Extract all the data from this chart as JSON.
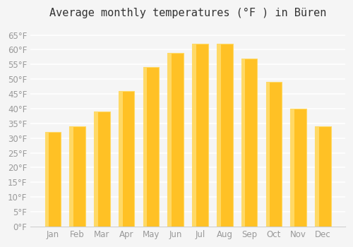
{
  "title": "Average monthly temperatures (°F ) in Büren",
  "months": [
    "Jan",
    "Feb",
    "Mar",
    "Apr",
    "May",
    "Jun",
    "Jul",
    "Aug",
    "Sep",
    "Oct",
    "Nov",
    "Dec"
  ],
  "values": [
    32,
    34,
    39,
    46,
    54,
    59,
    62,
    62,
    57,
    49,
    40,
    34
  ],
  "bar_color_main": "#FFC125",
  "bar_color_edge": "#FFD966",
  "ylim": [
    0,
    68
  ],
  "yticks": [
    0,
    5,
    10,
    15,
    20,
    25,
    30,
    35,
    40,
    45,
    50,
    55,
    60,
    65
  ],
  "background_color": "#f5f5f5",
  "grid_color": "#ffffff",
  "title_fontsize": 11,
  "tick_fontsize": 8.5,
  "font_color": "#999999"
}
